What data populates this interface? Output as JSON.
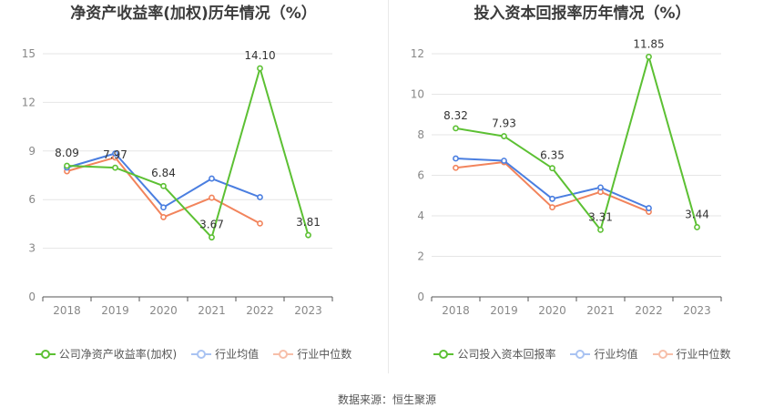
{
  "source": "数据来源：恒生聚源",
  "colors": {
    "company": "#5cc033",
    "avg": "#4a7ee0",
    "median": "#f2845c",
    "grid": "#e6e6e6",
    "axis": "#555555",
    "tick": "#888888"
  },
  "chart_data": [
    {
      "type": "line",
      "title": "净资产收益率(加权)历年情况（%）",
      "categories": [
        "2018",
        "2019",
        "2020",
        "2021",
        "2022",
        "2023"
      ],
      "ylim": [
        0,
        15
      ],
      "yticks": [
        "0",
        "3",
        "6",
        "9",
        "12",
        "15"
      ],
      "ytick_values": [
        0,
        3,
        6,
        9,
        12,
        15
      ],
      "series": [
        {
          "name": "公司净资产收益率(加权)",
          "key": "company",
          "values": [
            8.09,
            7.97,
            6.84,
            3.67,
            14.1,
            3.81
          ],
          "labels": [
            "8.09",
            "7.97",
            "6.84",
            "3.67",
            "14.10",
            "3.81"
          ]
        },
        {
          "name": "行业均值",
          "key": "avg",
          "values": [
            7.98,
            8.85,
            5.52,
            7.3,
            6.15,
            null
          ]
        },
        {
          "name": "行业中位数",
          "key": "median",
          "values": [
            7.75,
            8.6,
            4.92,
            6.12,
            4.53,
            null
          ]
        }
      ]
    },
    {
      "type": "line",
      "title": "投入资本回报率历年情况（%）",
      "categories": [
        "2018",
        "2019",
        "2020",
        "2021",
        "2022",
        "2023"
      ],
      "ylim": [
        0,
        12
      ],
      "yticks": [
        "0",
        "2",
        "4",
        "6",
        "8",
        "10",
        "12"
      ],
      "ytick_values": [
        0,
        2,
        4,
        6,
        8,
        10,
        12
      ],
      "series": [
        {
          "name": "公司投入资本回报率",
          "key": "company",
          "values": [
            8.32,
            7.93,
            6.35,
            3.31,
            11.85,
            3.44
          ],
          "labels": [
            "8.32",
            "7.93",
            "6.35",
            "3.31",
            "11.85",
            "3.44"
          ]
        },
        {
          "name": "行业均值",
          "key": "avg",
          "values": [
            6.83,
            6.72,
            4.84,
            5.4,
            4.38,
            null
          ]
        },
        {
          "name": "行业中位数",
          "key": "median",
          "values": [
            6.37,
            6.65,
            4.42,
            5.18,
            4.2,
            null
          ]
        }
      ]
    }
  ]
}
